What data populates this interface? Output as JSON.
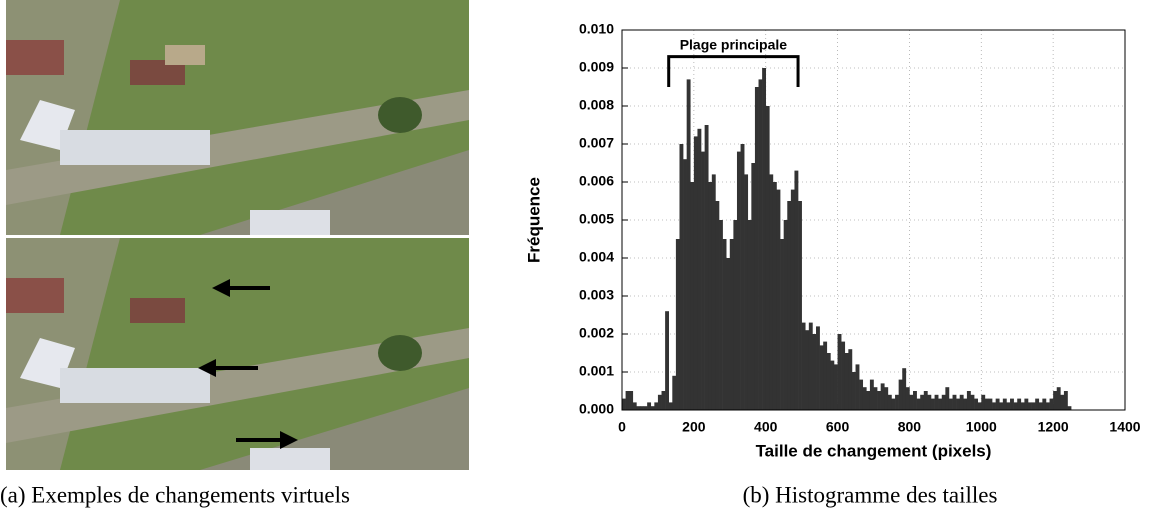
{
  "captions": [
    "(a) Exemples de changements virtuels",
    "(b) Histogramme des tailles"
  ],
  "chart_data": {
    "type": "histogram",
    "xlabel": "Taille de changement (pixels)",
    "ylabel": "Fréquence",
    "color": "#333333",
    "grid": true,
    "xlim": [
      0,
      1400
    ],
    "xticks": [
      0,
      200,
      400,
      600,
      800,
      1000,
      1200,
      1400
    ],
    "ylim": [
      0,
      0.01
    ],
    "yticks": [
      {
        "value": 0,
        "label": "0.000"
      },
      {
        "value": 0.001,
        "label": "0.001"
      },
      {
        "value": 0.002,
        "label": "0.002"
      },
      {
        "value": 0.003,
        "label": "0.003"
      },
      {
        "value": 0.004,
        "label": "0.004"
      },
      {
        "value": 0.005,
        "label": "0.005"
      },
      {
        "value": 0.006,
        "label": "0.006"
      },
      {
        "value": 0.007,
        "label": "0.007"
      },
      {
        "value": 0.008,
        "label": "0.008"
      },
      {
        "value": 0.009,
        "label": "0.009"
      },
      {
        "value": 0.01,
        "label": "0.010"
      }
    ],
    "annotation": {
      "text": "Plage principale",
      "x": [
        130,
        490
      ],
      "y": 0.0093,
      "y_end": 0.0085
    },
    "bins": [
      0,
      10,
      20,
      30,
      40,
      50,
      60,
      70,
      80,
      90,
      100,
      110,
      120,
      130,
      140,
      150,
      160,
      170,
      180,
      190,
      200,
      210,
      220,
      230,
      240,
      250,
      260,
      270,
      280,
      290,
      300,
      310,
      320,
      330,
      340,
      350,
      360,
      370,
      380,
      390,
      400,
      410,
      420,
      430,
      440,
      450,
      460,
      470,
      480,
      490,
      500,
      510,
      520,
      530,
      540,
      550,
      560,
      570,
      580,
      590,
      600,
      610,
      620,
      630,
      640,
      650,
      660,
      670,
      680,
      690,
      700,
      710,
      720,
      730,
      740,
      750,
      760,
      770,
      780,
      790,
      800,
      810,
      820,
      830,
      840,
      850,
      860,
      870,
      880,
      890,
      900,
      910,
      920,
      930,
      940,
      950,
      960,
      970,
      980,
      990,
      1000,
      1010,
      1020,
      1030,
      1040,
      1050,
      1060,
      1070,
      1080,
      1090,
      1100,
      1110,
      1120,
      1130,
      1140,
      1150,
      1160,
      1170,
      1180,
      1190,
      1200,
      1210,
      1220,
      1230,
      1240,
      1250
    ],
    "values": [
      0.0003,
      0.0005,
      0.0005,
      0.0002,
      0.0001,
      0.0001,
      0.0001,
      0.0002,
      0.0001,
      0.0002,
      0.0004,
      0.0005,
      0.0026,
      0.0002,
      0.0009,
      0.0045,
      0.007,
      0.0066,
      0.0087,
      0.006,
      0.0072,
      0.0074,
      0.0068,
      0.0075,
      0.006,
      0.0062,
      0.0055,
      0.005,
      0.0045,
      0.004,
      0.0045,
      0.005,
      0.0068,
      0.007,
      0.0062,
      0.005,
      0.0065,
      0.0085,
      0.0087,
      0.009,
      0.008,
      0.0062,
      0.006,
      0.0058,
      0.0045,
      0.005,
      0.0055,
      0.0058,
      0.0063,
      0.0055,
      0.0023,
      0.0021,
      0.0023,
      0.002,
      0.0022,
      0.0017,
      0.0018,
      0.0015,
      0.0013,
      0.0012,
      0.002,
      0.0018,
      0.0015,
      0.0016,
      0.001,
      0.0012,
      0.0008,
      0.0006,
      0.0005,
      0.0008,
      0.0006,
      0.0005,
      0.0007,
      0.0006,
      0.0004,
      0.0003,
      0.0004,
      0.0008,
      0.0011,
      0.0006,
      0.0004,
      0.0005,
      0.0003,
      0.0004,
      0.0005,
      0.0004,
      0.0003,
      0.0004,
      0.0003,
      0.0004,
      0.0006,
      0.0003,
      0.0004,
      0.0003,
      0.0004,
      0.0003,
      0.0005,
      0.0004,
      0.0003,
      0.0002,
      0.0004,
      0.0003,
      0.0003,
      0.0002,
      0.0003,
      0.0002,
      0.0003,
      0.0002,
      0.0003,
      0.0002,
      0.0003,
      0.0002,
      0.0003,
      0.0002,
      0.0002,
      0.0003,
      0.0002,
      0.0003,
      0.0002,
      0.0003,
      0.0005,
      0.0006,
      0.0004,
      0.0005,
      0.0001
    ]
  }
}
